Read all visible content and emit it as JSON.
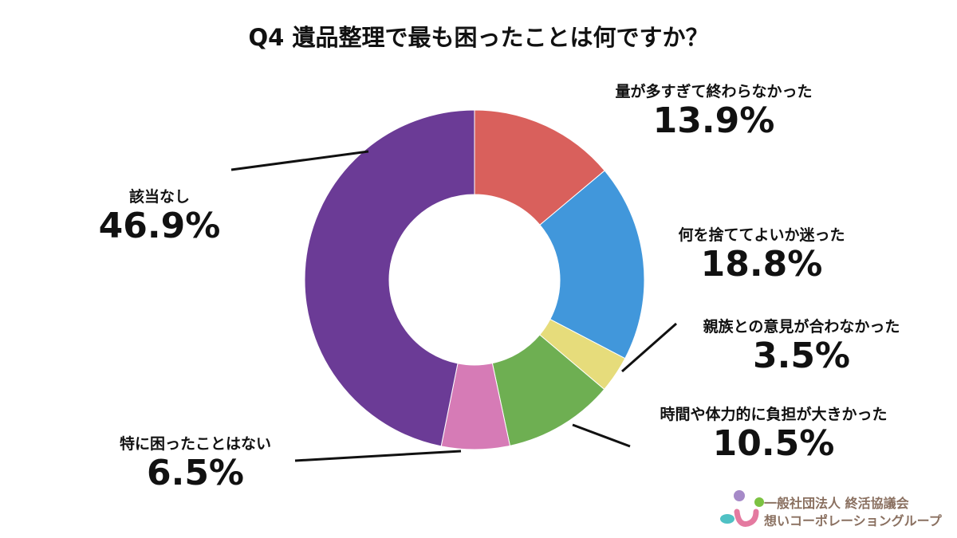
{
  "chart_data": {
    "type": "pie",
    "title": "Q4 遺品整理で最も困ったことは何ですか？",
    "donut": true,
    "start": "top, clockwise",
    "slices": [
      {
        "label": "量が多すぎて終わらなかった",
        "value": 13.9,
        "display": "13.9%",
        "color": "#d9605c"
      },
      {
        "label": "何を捨ててよいか迷った",
        "value": 18.8,
        "display": "18.8%",
        "color": "#4197db"
      },
      {
        "label": "親族との意見が合わなかった",
        "value": 3.5,
        "display": "3.5%",
        "color": "#e6dc7b"
      },
      {
        "label": "時間や体力的に負担が大きかった",
        "value": 10.5,
        "display": "10.5%",
        "color": "#6eaf52"
      },
      {
        "label": "特に困ったことはない",
        "value": 6.5,
        "display": "6.5%",
        "color": "#d67bb6"
      },
      {
        "label": "該当なし",
        "value": 46.9,
        "display": "46.9%",
        "color": "#6b3b96"
      }
    ]
  },
  "logo": {
    "line1": "一般社団法人 終活協議会",
    "line2": "想いコーポレーショングループ"
  }
}
